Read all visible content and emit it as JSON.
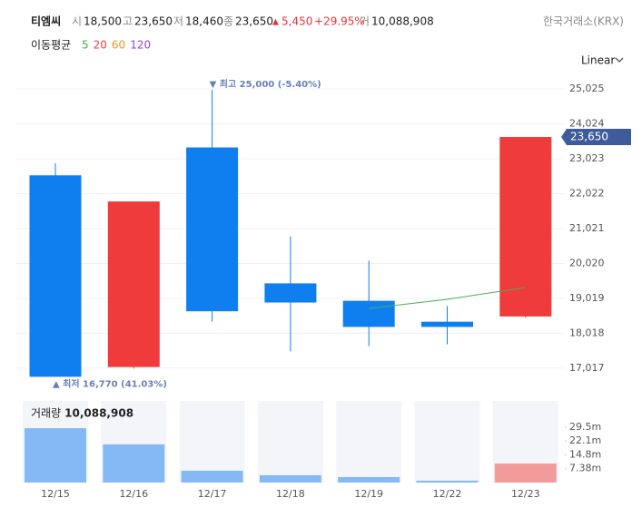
{
  "header": {
    "name": "티엠씨",
    "open_label": "시",
    "open": "18,500",
    "high_label": "고",
    "high": "23,650",
    "low_label": "저",
    "low": "18,460",
    "close_label": "종",
    "close": "23,650",
    "change_arrow": "▲",
    "change": "5,450",
    "change_pct": "+29.95%",
    "volume_label": "거",
    "volume": "10,088,908",
    "exchange": "한국거래소(KRX)",
    "ma_title": "이동평균",
    "ma_periods": [
      {
        "label": "5",
        "color": "#3cb043"
      },
      {
        "label": "20",
        "color": "#e8463c"
      },
      {
        "label": "60",
        "color": "#f0952a"
      },
      {
        "label": "120",
        "color": "#9b3fe0"
      }
    ],
    "scale_mode": "Linear"
  },
  "chart_data": [
    {
      "type": "candlestick",
      "open": [
        22550,
        17050,
        23350,
        19450,
        18950,
        18350,
        18500
      ],
      "high": [
        22900,
        21800,
        25000,
        20800,
        20100,
        18800,
        23650
      ],
      "low": [
        16770,
        17000,
        18350,
        17500,
        17650,
        17700,
        18460
      ],
      "close": [
        16770,
        21800,
        18650,
        18900,
        18200,
        18200,
        23650
      ],
      "up_color": "#ef3b3b",
      "down_color": "#0f7ff0",
      "series": [
        {
          "name": "5",
          "color": "#4caf50",
          "values": [
            null,
            null,
            null,
            null,
            18733,
            18993,
            19330
          ]
        }
      ],
      "ylim": [
        16650,
        25290
      ],
      "yticks": [
        {
          "value": 17017,
          "label": "17,017"
        },
        {
          "value": 18018,
          "label": "18,018"
        },
        {
          "value": 19019,
          "label": "19,019"
        },
        {
          "value": 20020,
          "label": "20,020"
        },
        {
          "value": 21021,
          "label": "21,021"
        },
        {
          "value": 22022,
          "label": "22,022"
        },
        {
          "value": 23023,
          "label": "23,023"
        },
        {
          "value": 24024,
          "label": "24,024"
        },
        {
          "value": 25025,
          "label": "25,025"
        }
      ],
      "grid": true,
      "annotations": [
        {
          "text": "▼ 최고 25,000 (-5.40%)",
          "index": 2,
          "value": 25000,
          "position": "above"
        },
        {
          "text": "▲ 최저 16,770 (41.03%)",
          "index": 0,
          "value": 16770,
          "position": "below"
        }
      ],
      "last_price_label": "23,650",
      "last_price_color": "#3f5b9c"
    },
    {
      "type": "bar",
      "title": "거래량",
      "subtitle": "10,088,908",
      "categories": [
        "12/15",
        "12/16",
        "12/17",
        "12/18",
        "12/19",
        "12/22",
        "12/23"
      ],
      "values": [
        28900000,
        20300000,
        6300000,
        3900000,
        2900000,
        1000000,
        10088908
      ],
      "colors": [
        "#84b9f6",
        "#84b9f6",
        "#84b9f6",
        "#84b9f6",
        "#84b9f6",
        "#84b9f6",
        "#f19b9b"
      ],
      "ylim": [
        0,
        43400000
      ],
      "yticks": [
        {
          "value": 7380000,
          "label": "7.38m"
        },
        {
          "value": 14800000,
          "label": "14.8m"
        },
        {
          "value": 22100000,
          "label": "22.1m"
        },
        {
          "value": 29500000,
          "label": "29.5m"
        }
      ]
    }
  ]
}
